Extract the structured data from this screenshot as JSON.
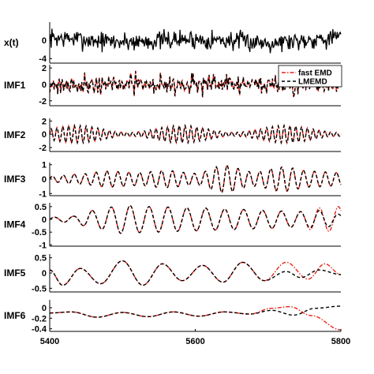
{
  "chart_data": {
    "type": "line",
    "layout": "stacked panels sharing x axis",
    "x_axis": {
      "min": 5400,
      "max": 5800,
      "ticks": [
        5400,
        5600,
        5800
      ],
      "tick_labels": [
        "5400",
        "5600",
        "5800"
      ]
    },
    "legend": {
      "placement": "top-right of IMF1 panel",
      "entries": [
        {
          "label": "fast EMD",
          "color": "#e8241a",
          "style": "dash-dot"
        },
        {
          "label": "LMEMD",
          "color": "#000000",
          "style": "dashed"
        }
      ]
    },
    "panels": [
      {
        "label": "x(t)",
        "ylim": [
          -5,
          4
        ],
        "y_ticks": [
          0,
          -4
        ],
        "y_tick_labels": [
          "0",
          "-4"
        ],
        "series": [
          {
            "color": "#000000",
            "style": "solid",
            "character": "broadband noise, amplitude ~1.5",
            "anchor_x": [
              5400,
              5500,
              5600,
              5700,
              5800
            ],
            "anchor_y": [
              0.5,
              -0.3,
              0.2,
              -0.4,
              0.6
            ]
          }
        ]
      },
      {
        "label": "IMF1",
        "ylim": [
          -2.6,
          2.4
        ],
        "y_ticks": [
          2,
          0,
          -2
        ],
        "y_tick_labels": [
          "2",
          "0",
          "-2"
        ],
        "series": [
          {
            "name": "fast EMD",
            "color": "#e8241a",
            "style": "dash-dot",
            "character": "highest-frequency oscillation, amplitude ~1",
            "anchor_x": [
              5400,
              5600,
              5800
            ],
            "anchor_y": [
              0,
              0,
              0
            ]
          },
          {
            "name": "LMEMD",
            "color": "#000000",
            "style": "dashed",
            "character": "overlaps fast EMD",
            "anchor_x": [
              5400,
              5600,
              5800
            ],
            "anchor_y": [
              0,
              0,
              0
            ]
          }
        ]
      },
      {
        "label": "IMF2",
        "ylim": [
          -2.6,
          2.4
        ],
        "y_ticks": [
          2,
          0,
          -2
        ],
        "y_tick_labels": [
          "2",
          "0",
          "-2"
        ],
        "series": [
          {
            "name": "fast EMD",
            "color": "#e8241a",
            "style": "dash-dot",
            "period": 8,
            "amplitude_range": [
              0.3,
              1.3
            ],
            "anchor_x": [
              5400,
              5600,
              5800
            ],
            "anchor_y": [
              0,
              0,
              0
            ]
          },
          {
            "name": "LMEMD",
            "color": "#000000",
            "style": "dashed",
            "period": 8,
            "amplitude_range": [
              0.3,
              1.3
            ],
            "anchor_x": [
              5400,
              5600,
              5800
            ],
            "anchor_y": [
              0,
              0,
              0
            ]
          }
        ]
      },
      {
        "label": "IMF3",
        "ylim": [
          -1.15,
          1.15
        ],
        "y_ticks": [
          1,
          0,
          -1
        ],
        "y_tick_labels": [
          "1",
          "0",
          "-1"
        ],
        "series": [
          {
            "name": "fast EMD",
            "color": "#e8241a",
            "style": "dash-dot",
            "period": 15,
            "envelope_x": [
              5400,
              5440,
              5480,
              5520,
              5560,
              5600,
              5640,
              5680,
              5720,
              5760,
              5800
            ],
            "envelope_y": [
              0.2,
              0.35,
              0.55,
              0.45,
              0.6,
              0.4,
              0.95,
              0.5,
              0.85,
              0.55,
              0.45
            ]
          },
          {
            "name": "LMEMD",
            "color": "#000000",
            "style": "dashed",
            "period": 15,
            "envelope_x": [
              5400,
              5440,
              5480,
              5520,
              5560,
              5600,
              5640,
              5680,
              5720,
              5760,
              5800
            ],
            "envelope_y": [
              0.2,
              0.35,
              0.55,
              0.45,
              0.6,
              0.4,
              0.95,
              0.5,
              0.85,
              0.55,
              0.45
            ]
          }
        ]
      },
      {
        "label": "IMF4",
        "ylim": [
          -1.05,
          0.65
        ],
        "y_ticks": [
          0.5,
          0,
          -0.5,
          -1
        ],
        "y_tick_labels": [
          "0.5",
          "0",
          "-0.5",
          "-1"
        ],
        "series": [
          {
            "name": "fast EMD",
            "color": "#e8241a",
            "style": "dash-dot",
            "period": 26,
            "envelope_x": [
              5400,
              5430,
              5460,
              5500,
              5540,
              5600,
              5650,
              5700,
              5740,
              5770,
              5800
            ],
            "envelope_y": [
              0.08,
              0.12,
              0.35,
              0.55,
              0.5,
              0.45,
              0.4,
              0.35,
              0.3,
              0.45,
              0.5
            ]
          },
          {
            "name": "LMEMD",
            "color": "#000000",
            "style": "dashed",
            "period": 26,
            "envelope_x": [
              5400,
              5430,
              5460,
              5500,
              5540,
              5600,
              5650,
              5700,
              5740,
              5770,
              5800
            ],
            "envelope_y": [
              0.08,
              0.12,
              0.35,
              0.55,
              0.5,
              0.45,
              0.4,
              0.35,
              0.3,
              0.35,
              0.2
            ]
          }
        ]
      },
      {
        "label": "IMF5",
        "ylim": [
          -0.62,
          0.62
        ],
        "y_ticks": [
          0.5,
          0,
          -0.5
        ],
        "y_tick_labels": [
          "0.5",
          "0",
          "-0.5"
        ],
        "series": [
          {
            "name": "fast EMD",
            "color": "#e8241a",
            "style": "dash-dot",
            "anchor_x": [
              5400,
              5418,
              5442,
              5470,
              5500,
              5528,
              5555,
              5582,
              5610,
              5638,
              5665,
              5695,
              5725,
              5755,
              5778,
              5800
            ],
            "anchor_y": [
              0.1,
              -0.4,
              0.15,
              -0.35,
              0.4,
              -0.4,
              0.3,
              -0.25,
              0.25,
              -0.3,
              0.35,
              -0.25,
              0.35,
              -0.2,
              0.3,
              -0.05
            ]
          },
          {
            "name": "LMEMD",
            "color": "#000000",
            "style": "dashed",
            "anchor_x": [
              5400,
              5418,
              5442,
              5470,
              5500,
              5528,
              5555,
              5582,
              5610,
              5638,
              5665,
              5695,
              5725,
              5745,
              5770,
              5800
            ],
            "anchor_y": [
              0.1,
              -0.4,
              0.15,
              -0.35,
              0.4,
              -0.4,
              0.3,
              -0.25,
              0.25,
              -0.3,
              0.35,
              -0.25,
              0.05,
              -0.15,
              0.1,
              -0.05
            ]
          }
        ]
      },
      {
        "label": "IMF6",
        "ylim": [
          -0.45,
          0.15
        ],
        "y_ticks": [
          0,
          -0.2,
          -0.4
        ],
        "y_tick_labels": [
          "0",
          "-0.2",
          "-0.4"
        ],
        "series": [
          {
            "name": "fast EMD",
            "color": "#e8241a",
            "style": "dash-dot",
            "anchor_x": [
              5400,
              5430,
              5465,
              5500,
              5535,
              5570,
              5605,
              5640,
              5675,
              5705,
              5730,
              5760,
              5800
            ],
            "anchor_y": [
              -0.1,
              -0.08,
              -0.18,
              -0.09,
              -0.17,
              -0.08,
              -0.16,
              -0.08,
              -0.12,
              -0.01,
              0.02,
              -0.15,
              -0.42
            ]
          },
          {
            "name": "LMEMD",
            "color": "#000000",
            "style": "dashed",
            "anchor_x": [
              5400,
              5430,
              5465,
              5500,
              5535,
              5570,
              5605,
              5640,
              5675,
              5705,
              5735,
              5765,
              5800
            ],
            "anchor_y": [
              -0.1,
              -0.08,
              -0.18,
              -0.09,
              -0.17,
              -0.08,
              -0.16,
              -0.08,
              -0.12,
              -0.05,
              -0.14,
              -0.01,
              0.03
            ]
          }
        ]
      }
    ]
  }
}
